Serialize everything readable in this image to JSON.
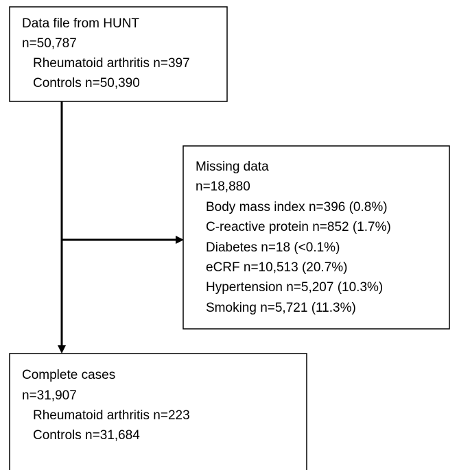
{
  "nodes": [
    {
      "title": "Data file from HUNT",
      "count": "n=50,787",
      "items": [
        "Rheumatoid arthritis n=397",
        "Controls n=50,390"
      ]
    },
    {
      "title": "Missing data",
      "count": "n=18,880",
      "items": [
        "Body mass index n=396 (0.8%)",
        "C-reactive protein n=852 (1.7%)",
        "Diabetes n=18 (<0.1%)",
        "eCRF n=10,513 (20.7%)",
        "Hypertension n=5,207 (10.3%)",
        "Smoking n=5,721 (11.3%)"
      ]
    },
    {
      "title": "Complete cases",
      "count": "n=31,907",
      "items": [
        "Rheumatoid arthritis n=223",
        "Controls n=31,684"
      ]
    }
  ]
}
